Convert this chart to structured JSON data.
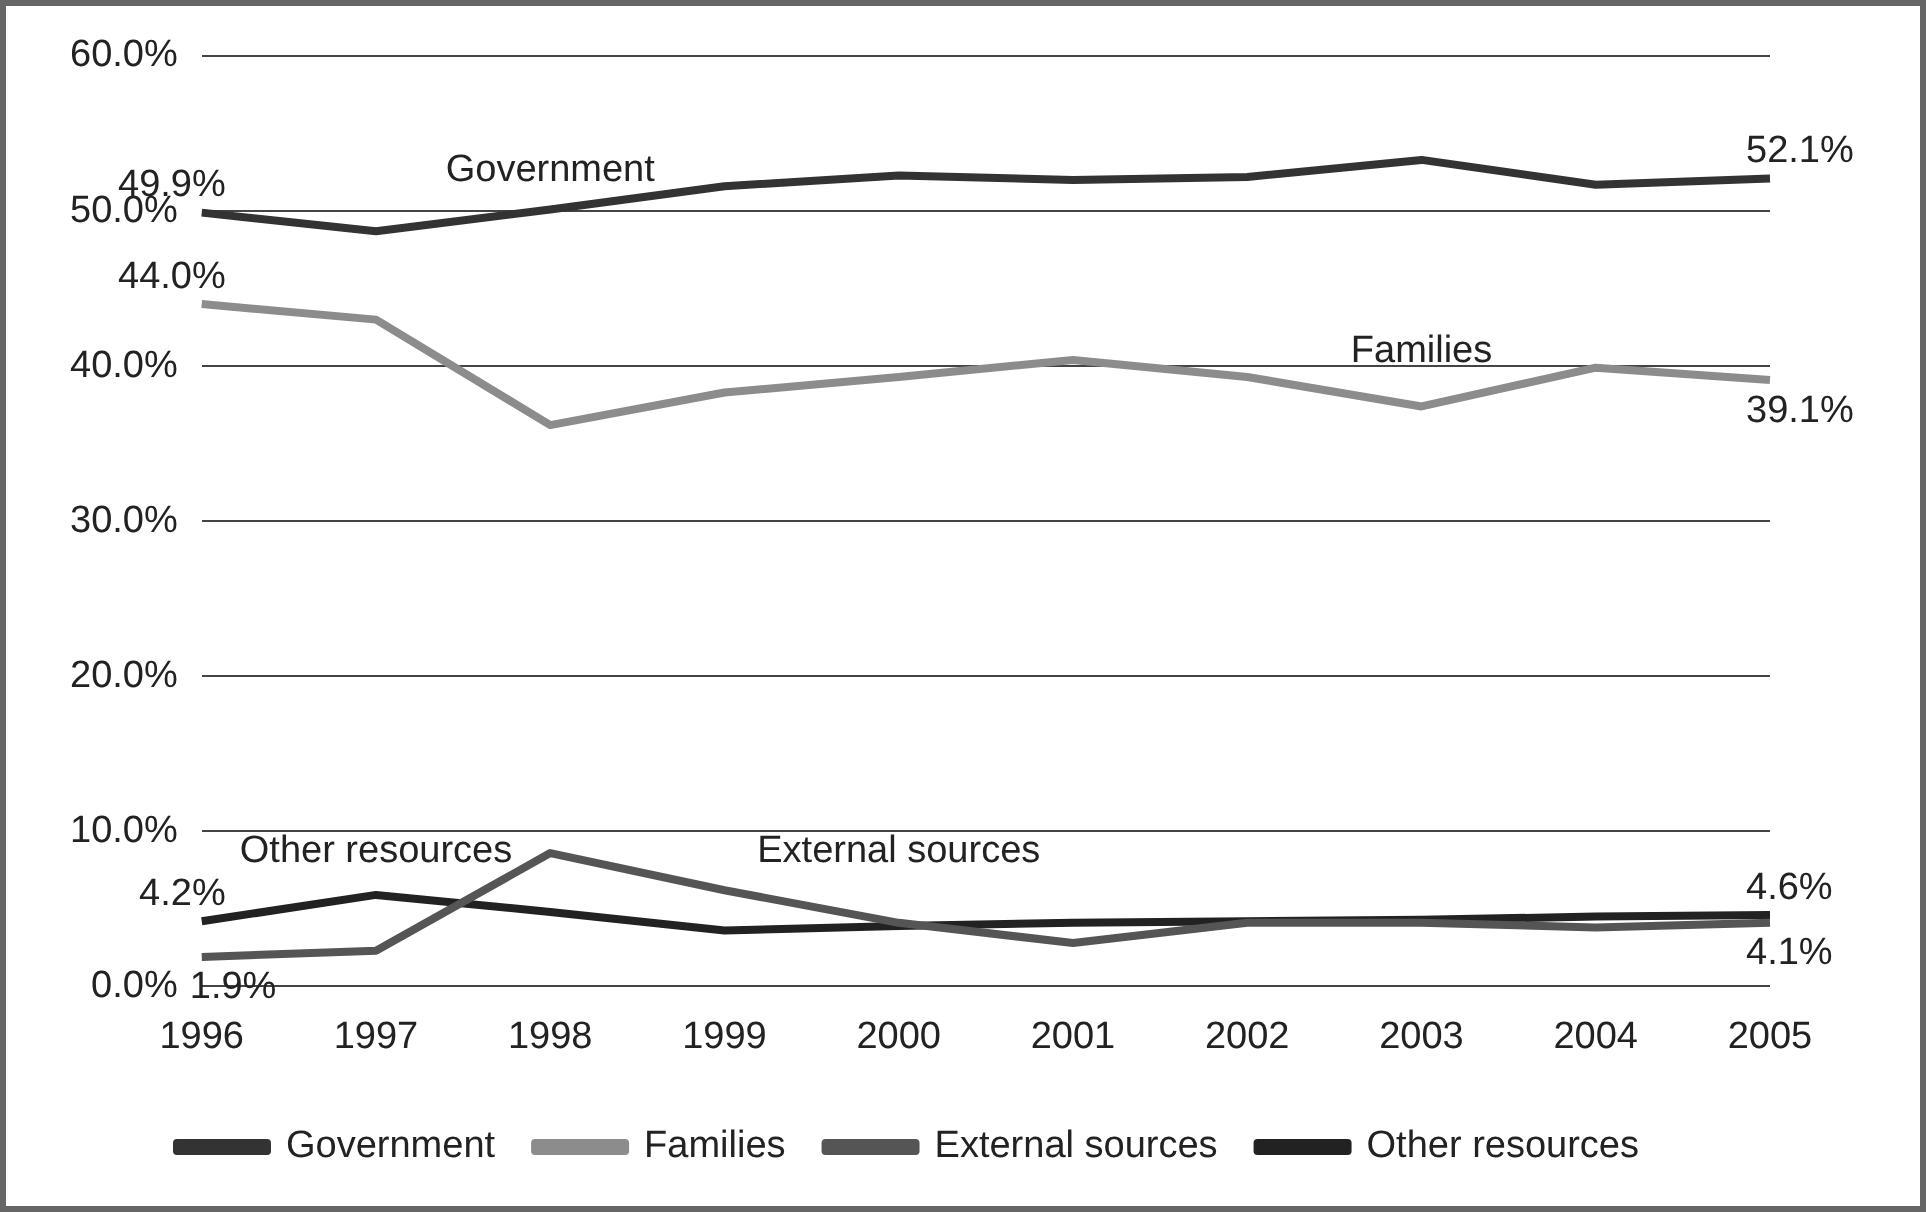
{
  "chart_data": {
    "type": "line",
    "categories": [
      "1996",
      "1997",
      "1998",
      "1999",
      "2000",
      "2001",
      "2002",
      "2003",
      "2004",
      "2005"
    ],
    "series": [
      {
        "name": "Government",
        "color": "#333333",
        "values": [
          49.9,
          48.7,
          50.1,
          51.6,
          52.3,
          52.0,
          52.2,
          53.3,
          51.7,
          52.1
        ],
        "value_labels": [
          "49.9%",
          null,
          null,
          null,
          null,
          null,
          null,
          null,
          null,
          "52.1%"
        ]
      },
      {
        "name": "Families",
        "color": "#8c8c8c",
        "values": [
          44.0,
          43.0,
          36.2,
          38.3,
          39.3,
          40.4,
          39.3,
          37.4,
          39.9,
          39.1
        ],
        "value_labels": [
          "44.0%",
          null,
          null,
          null,
          null,
          null,
          null,
          null,
          null,
          "39.1%"
        ]
      },
      {
        "name": "External sources",
        "color": "#555555",
        "values": [
          1.9,
          2.3,
          8.6,
          6.2,
          4.1,
          2.8,
          4.1,
          4.1,
          3.8,
          4.1
        ],
        "value_labels": [
          "1.9%",
          null,
          null,
          null,
          null,
          null,
          null,
          null,
          null,
          "4.1%"
        ]
      },
      {
        "name": "Other resources",
        "color": "#222222",
        "values": [
          4.2,
          5.9,
          4.8,
          3.6,
          3.9,
          4.1,
          4.2,
          4.3,
          4.5,
          4.6
        ],
        "value_labels": [
          "4.2%",
          null,
          null,
          null,
          null,
          null,
          null,
          null,
          null,
          "4.6%"
        ]
      }
    ],
    "ylim": [
      0,
      60
    ],
    "yticks": [
      {
        "value": 0,
        "label": "0.0%"
      },
      {
        "value": 10,
        "label": "10.0%"
      },
      {
        "value": 20,
        "label": "20.0%"
      },
      {
        "value": 30,
        "label": "30.0%"
      },
      {
        "value": 40,
        "label": "40.0%"
      },
      {
        "value": 50,
        "label": "50.0%"
      },
      {
        "value": 60,
        "label": "60.0%"
      }
    ],
    "grid": "y",
    "legend": "bottom",
    "marker": "none",
    "line_style": "solid"
  }
}
